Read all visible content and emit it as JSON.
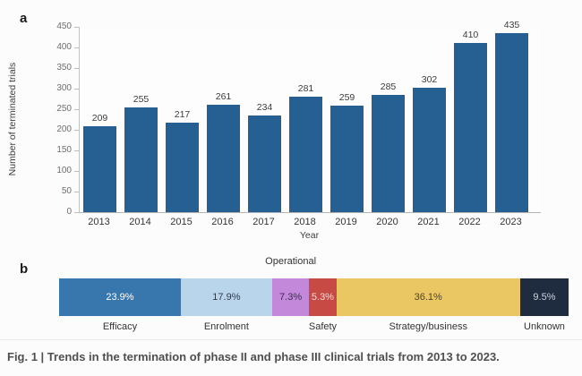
{
  "figure": {
    "panel_a_label": "a",
    "panel_b_label": "b",
    "caption": "Fig. 1 | Trends in the termination of phase II and phase III clinical trials from 2013 to 2023."
  },
  "colors": {
    "bar_blue": "#265F92",
    "axis_gray": "#b3b3b3",
    "caption_gray": "#4f4f4f"
  },
  "chart_data": [
    {
      "type": "bar",
      "panel": "a",
      "title": "",
      "xlabel": "Year",
      "ylabel": "Number of terminated trials",
      "categories": [
        "2013",
        "2014",
        "2015",
        "2016",
        "2017",
        "2018",
        "2019",
        "2020",
        "2021",
        "2022",
        "2023"
      ],
      "values": [
        209,
        255,
        217,
        261,
        234,
        281,
        259,
        285,
        302,
        410,
        435
      ],
      "ylim": [
        0,
        450
      ],
      "yticks": [
        0,
        50,
        100,
        150,
        200,
        250,
        300,
        350,
        400,
        450
      ],
      "bar_color": "#265F92",
      "grid": false,
      "value_labels_shown": true,
      "legend": null
    },
    {
      "type": "bar",
      "panel": "b",
      "orientation": "horizontal_stacked",
      "unit": "percent",
      "total": 100,
      "segments": [
        {
          "label": "Efficacy",
          "value": 23.9,
          "display": "23.9%",
          "color": "#3876AE",
          "text_color": "#ffffff",
          "label_side": "below"
        },
        {
          "label": "Enrolment",
          "value": 17.9,
          "display": "17.9%",
          "color": "#B9D5EC",
          "text_color": "#333b46",
          "label_side": "below"
        },
        {
          "label": "Operational",
          "value": 7.3,
          "display": "7.3%",
          "color": "#C388D9",
          "text_color": "#3c2b52",
          "label_side": "above"
        },
        {
          "label": "Safety",
          "value": 5.3,
          "display": "5.3%",
          "color": "#C74A45",
          "text_color": "#f5dcda",
          "label_side": "below"
        },
        {
          "label": "Strategy/business",
          "value": 36.1,
          "display": "36.1%",
          "color": "#EAC763",
          "text_color": "#4e4628",
          "label_side": "below"
        },
        {
          "label": "Unknown",
          "value": 9.5,
          "display": "9.5%",
          "color": "#1F2B3E",
          "text_color": "#ccd3dc",
          "label_side": "below"
        }
      ]
    }
  ]
}
